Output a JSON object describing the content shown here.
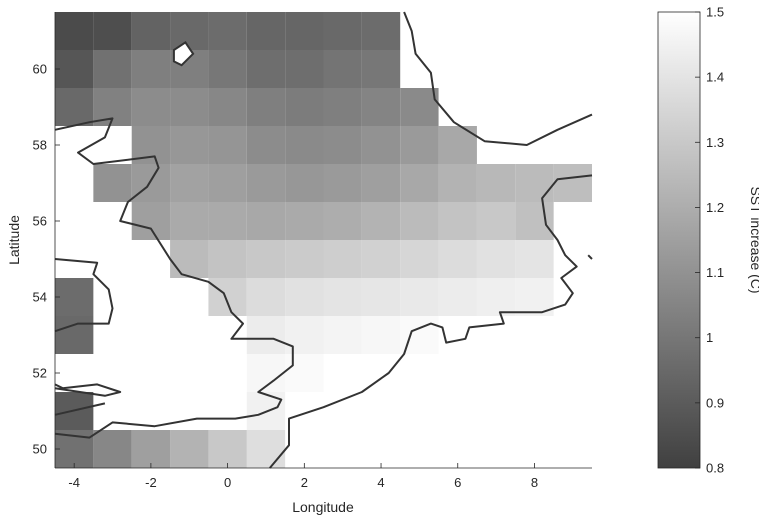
{
  "chart_data": {
    "type": "heatmap",
    "title": "",
    "xlabel": "Longitude",
    "ylabel": "Latitude",
    "xlim": [
      -4.5,
      9.5
    ],
    "ylim": [
      49.5,
      61.5
    ],
    "xticks": [
      "-4",
      "-2",
      "0",
      "2",
      "4",
      "6",
      "8"
    ],
    "yticks": [
      "50",
      "52",
      "54",
      "56",
      "58",
      "60"
    ],
    "grid": false,
    "colorbar": {
      "label": "SST increase (C)",
      "range": [
        0.8,
        1.5
      ],
      "ticks": [
        "0.8",
        "0.9",
        "1",
        "1.1",
        "1.2",
        "1.3",
        "1.4",
        "1.5"
      ],
      "colormap": "gray",
      "color_low": "#404040",
      "color_high": "#ffffff"
    },
    "cell_lon_step": 1,
    "cell_lat_step": 1,
    "cells": [
      {
        "lon": -4,
        "lat": 61,
        "v": 0.84
      },
      {
        "lon": -3,
        "lat": 61,
        "v": 0.85
      },
      {
        "lon": -2,
        "lat": 61,
        "v": 0.93
      },
      {
        "lon": -1,
        "lat": 61,
        "v": 0.95
      },
      {
        "lon": 0,
        "lat": 61,
        "v": 0.96
      },
      {
        "lon": 1,
        "lat": 61,
        "v": 0.94
      },
      {
        "lon": 2,
        "lat": 61,
        "v": 0.94
      },
      {
        "lon": 3,
        "lat": 61,
        "v": 0.95
      },
      {
        "lon": 4,
        "lat": 61,
        "v": 0.96
      },
      {
        "lon": -4,
        "lat": 60,
        "v": 0.88
      },
      {
        "lon": -3,
        "lat": 60,
        "v": 0.98
      },
      {
        "lon": -2,
        "lat": 60,
        "v": 1.03
      },
      {
        "lon": -1,
        "lat": 60,
        "v": 1.03
      },
      {
        "lon": 0,
        "lat": 60,
        "v": 1.0
      },
      {
        "lon": 1,
        "lat": 60,
        "v": 0.97
      },
      {
        "lon": 2,
        "lat": 60,
        "v": 0.97
      },
      {
        "lon": 3,
        "lat": 60,
        "v": 0.99
      },
      {
        "lon": 4,
        "lat": 60,
        "v": 1.0
      },
      {
        "lon": -4,
        "lat": 59,
        "v": 0.95
      },
      {
        "lon": -3,
        "lat": 59,
        "v": 1.04
      },
      {
        "lon": -2,
        "lat": 59,
        "v": 1.08
      },
      {
        "lon": -1,
        "lat": 59,
        "v": 1.08
      },
      {
        "lon": 0,
        "lat": 59,
        "v": 1.06
      },
      {
        "lon": 1,
        "lat": 59,
        "v": 1.03
      },
      {
        "lon": 2,
        "lat": 59,
        "v": 1.02
      },
      {
        "lon": 3,
        "lat": 59,
        "v": 1.03
      },
      {
        "lon": 4,
        "lat": 59,
        "v": 1.05
      },
      {
        "lon": 5,
        "lat": 59,
        "v": 1.07
      },
      {
        "lon": -2,
        "lat": 58,
        "v": 1.1
      },
      {
        "lon": -1,
        "lat": 58,
        "v": 1.12
      },
      {
        "lon": 0,
        "lat": 58,
        "v": 1.11
      },
      {
        "lon": 1,
        "lat": 58,
        "v": 1.08
      },
      {
        "lon": 2,
        "lat": 58,
        "v": 1.07
      },
      {
        "lon": 3,
        "lat": 58,
        "v": 1.08
      },
      {
        "lon": 4,
        "lat": 58,
        "v": 1.1
      },
      {
        "lon": 5,
        "lat": 58,
        "v": 1.13
      },
      {
        "lon": 6,
        "lat": 58,
        "v": 1.18
      },
      {
        "lon": -3,
        "lat": 57,
        "v": 1.1
      },
      {
        "lon": -2,
        "lat": 57,
        "v": 1.13
      },
      {
        "lon": -1,
        "lat": 57,
        "v": 1.16
      },
      {
        "lon": 0,
        "lat": 57,
        "v": 1.15
      },
      {
        "lon": 1,
        "lat": 57,
        "v": 1.13
      },
      {
        "lon": 2,
        "lat": 57,
        "v": 1.12
      },
      {
        "lon": 3,
        "lat": 57,
        "v": 1.13
      },
      {
        "lon": 4,
        "lat": 57,
        "v": 1.15
      },
      {
        "lon": 5,
        "lat": 57,
        "v": 1.18
      },
      {
        "lon": 6,
        "lat": 57,
        "v": 1.22
      },
      {
        "lon": 7,
        "lat": 57,
        "v": 1.24
      },
      {
        "lon": 8,
        "lat": 57,
        "v": 1.25
      },
      {
        "lon": 9,
        "lat": 57,
        "v": 1.26
      },
      {
        "lon": -2,
        "lat": 56,
        "v": 1.15
      },
      {
        "lon": -1,
        "lat": 56,
        "v": 1.19
      },
      {
        "lon": 0,
        "lat": 56,
        "v": 1.19
      },
      {
        "lon": 1,
        "lat": 56,
        "v": 1.18
      },
      {
        "lon": 2,
        "lat": 56,
        "v": 1.19
      },
      {
        "lon": 3,
        "lat": 56,
        "v": 1.2
      },
      {
        "lon": 4,
        "lat": 56,
        "v": 1.22
      },
      {
        "lon": 5,
        "lat": 56,
        "v": 1.25
      },
      {
        "lon": 6,
        "lat": 56,
        "v": 1.28
      },
      {
        "lon": 7,
        "lat": 56,
        "v": 1.3
      },
      {
        "lon": 8,
        "lat": 56,
        "v": 1.27
      },
      {
        "lon": -1,
        "lat": 55,
        "v": 1.25
      },
      {
        "lon": 0,
        "lat": 55,
        "v": 1.28
      },
      {
        "lon": 1,
        "lat": 55,
        "v": 1.3
      },
      {
        "lon": 2,
        "lat": 55,
        "v": 1.31
      },
      {
        "lon": 3,
        "lat": 55,
        "v": 1.32
      },
      {
        "lon": 4,
        "lat": 55,
        "v": 1.33
      },
      {
        "lon": 5,
        "lat": 55,
        "v": 1.35
      },
      {
        "lon": 6,
        "lat": 55,
        "v": 1.37
      },
      {
        "lon": 7,
        "lat": 55,
        "v": 1.39
      },
      {
        "lon": 8,
        "lat": 55,
        "v": 1.4
      },
      {
        "lon": 0,
        "lat": 54,
        "v": 1.33
      },
      {
        "lon": 1,
        "lat": 54,
        "v": 1.37
      },
      {
        "lon": 2,
        "lat": 54,
        "v": 1.39
      },
      {
        "lon": 3,
        "lat": 54,
        "v": 1.4
      },
      {
        "lon": 4,
        "lat": 54,
        "v": 1.41
      },
      {
        "lon": 5,
        "lat": 54,
        "v": 1.42
      },
      {
        "lon": 6,
        "lat": 54,
        "v": 1.43
      },
      {
        "lon": 7,
        "lat": 54,
        "v": 1.44
      },
      {
        "lon": 8,
        "lat": 54,
        "v": 1.45
      },
      {
        "lon": 1,
        "lat": 53,
        "v": 1.43
      },
      {
        "lon": 2,
        "lat": 53,
        "v": 1.45
      },
      {
        "lon": 3,
        "lat": 53,
        "v": 1.46
      },
      {
        "lon": 4,
        "lat": 53,
        "v": 1.47
      },
      {
        "lon": 5,
        "lat": 53,
        "v": 1.48
      },
      {
        "lon": 1,
        "lat": 52,
        "v": 1.47
      },
      {
        "lon": 2,
        "lat": 52,
        "v": 1.48
      },
      {
        "lon": 1,
        "lat": 51,
        "v": 1.45
      },
      {
        "lon": 1,
        "lat": 50,
        "v": 1.38
      },
      {
        "lon": 0,
        "lat": 50,
        "v": 1.3
      },
      {
        "lon": -1,
        "lat": 50,
        "v": 1.22
      },
      {
        "lon": -2,
        "lat": 50,
        "v": 1.15
      },
      {
        "lon": -3,
        "lat": 50,
        "v": 1.06
      },
      {
        "lon": -4,
        "lat": 50,
        "v": 0.98
      },
      {
        "lon": -4,
        "lat": 54,
        "v": 0.96
      },
      {
        "lon": -4,
        "lat": 53,
        "v": 0.95
      },
      {
        "lon": -4,
        "lat": 51,
        "v": 0.9
      }
    ],
    "coastlines": [
      [
        [
          -4.5,
          58.4
        ],
        [
          -3.6,
          58.6
        ],
        [
          -3.0,
          58.7
        ],
        [
          -3.2,
          58.2
        ],
        [
          -3.9,
          57.8
        ],
        [
          -3.5,
          57.5
        ],
        [
          -1.9,
          57.7
        ],
        [
          -1.8,
          57.4
        ],
        [
          -2.1,
          56.9
        ],
        [
          -2.6,
          56.5
        ],
        [
          -2.8,
          56.0
        ],
        [
          -2.0,
          55.8
        ],
        [
          -1.5,
          55.0
        ],
        [
          -1.2,
          54.6
        ],
        [
          -0.5,
          54.4
        ],
        [
          -0.1,
          54.1
        ],
        [
          0.1,
          53.6
        ],
        [
          0.4,
          53.3
        ],
        [
          0.1,
          52.9
        ],
        [
          0.5,
          52.9
        ],
        [
          1.2,
          52.9
        ],
        [
          1.7,
          52.7
        ],
        [
          1.7,
          52.2
        ],
        [
          1.2,
          51.8
        ],
        [
          0.8,
          51.5
        ],
        [
          1.4,
          51.3
        ],
        [
          1.3,
          51.1
        ],
        [
          0.8,
          50.9
        ],
        [
          0.2,
          50.8
        ],
        [
          -0.8,
          50.8
        ],
        [
          -1.9,
          50.6
        ],
        [
          -3.0,
          50.7
        ],
        [
          -3.6,
          50.3
        ],
        [
          -4.5,
          50.4
        ]
      ],
      [
        [
          -4.5,
          55.0
        ],
        [
          -3.4,
          54.9
        ],
        [
          -3.5,
          54.6
        ],
        [
          -3.1,
          54.2
        ],
        [
          -3.0,
          53.7
        ],
        [
          -3.1,
          53.3
        ],
        [
          -3.9,
          53.3
        ],
        [
          -4.5,
          53.1
        ]
      ],
      [
        [
          -4.5,
          51.6
        ],
        [
          -3.2,
          51.4
        ],
        [
          -2.8,
          51.5
        ],
        [
          -3.4,
          51.7
        ],
        [
          -4.3,
          51.6
        ],
        [
          -4.5,
          51.7
        ]
      ],
      [
        [
          -4.5,
          50.9
        ],
        [
          -3.2,
          51.2
        ]
      ],
      [
        [
          1.1,
          49.5
        ],
        [
          1.6,
          50.1
        ],
        [
          1.6,
          50.8
        ],
        [
          2.5,
          51.1
        ],
        [
          3.5,
          51.5
        ],
        [
          4.2,
          52.0
        ],
        [
          4.6,
          52.5
        ],
        [
          4.8,
          53.1
        ],
        [
          5.3,
          53.3
        ],
        [
          5.6,
          53.2
        ],
        [
          5.7,
          52.8
        ],
        [
          6.2,
          52.9
        ],
        [
          6.3,
          53.2
        ],
        [
          7.2,
          53.3
        ],
        [
          7.1,
          53.6
        ],
        [
          8.2,
          53.6
        ],
        [
          8.8,
          53.8
        ],
        [
          9.0,
          54.1
        ],
        [
          8.7,
          54.5
        ],
        [
          9.1,
          54.8
        ],
        [
          8.8,
          55.1
        ],
        [
          8.6,
          55.5
        ],
        [
          8.3,
          55.9
        ],
        [
          8.2,
          56.6
        ],
        [
          8.6,
          57.1
        ],
        [
          9.5,
          57.2
        ]
      ],
      [
        [
          4.6,
          61.5
        ],
        [
          4.8,
          61.0
        ],
        [
          4.9,
          60.4
        ],
        [
          5.3,
          59.9
        ],
        [
          5.4,
          59.2
        ],
        [
          5.9,
          58.6
        ],
        [
          6.7,
          58.1
        ],
        [
          7.8,
          58.0
        ],
        [
          8.6,
          58.4
        ],
        [
          9.5,
          58.8
        ]
      ],
      [
        [
          9.4,
          55.1
        ],
        [
          9.5,
          55.0
        ]
      ]
    ],
    "islands": [
      [
        [
          -1.4,
          60.2
        ],
        [
          -1.4,
          60.5
        ],
        [
          -1.1,
          60.7
        ],
        [
          -0.9,
          60.4
        ],
        [
          -1.2,
          60.1
        ],
        [
          -1.4,
          60.2
        ]
      ]
    ]
  }
}
